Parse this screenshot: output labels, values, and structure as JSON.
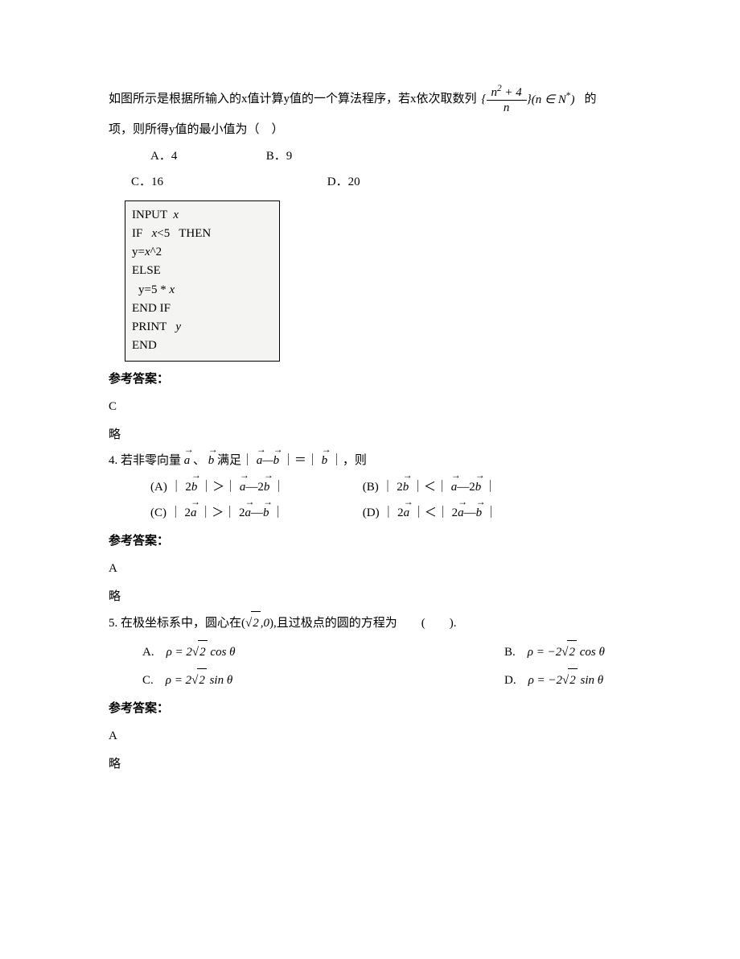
{
  "q3": {
    "intro_pre": "如图所示是根据所输入的x值计算y值的一个算法程序，若x依次取数列",
    "seq": {
      "num": "n² + 4",
      "den": "n",
      "suffix": " (n ∈ N*)"
    },
    "intro_post": "的",
    "line2": "项，则所得y值的最小值为（　）",
    "options": {
      "A": "A．4",
      "B": "B．9",
      "C": "C．16",
      "D": "D．20"
    },
    "answer_label": "参考答案：",
    "answer": "C",
    "note": "略",
    "code": {
      "l1_a": "INPUT  ",
      "l1_b": "x",
      "l2_a": "IF   ",
      "l2_b": "x",
      "l2_c": "<5   THEN",
      "l3_a": "y=",
      "l3_b": "x",
      "l3_c": "^2",
      "l4": "ELSE",
      "l5_a": "y=5 * ",
      "l5_b": "x",
      "l6": "END IF",
      "l7_a": "PRINT   ",
      "l7_b": "y",
      "l8": "END"
    }
  },
  "q4": {
    "intro_pre": "4. 若非零向量",
    "intro_mid": "、",
    "intro_mid2": " 满足｜ ",
    "intro_mid3": " ｜＝｜ ",
    "intro_post": " ｜，则",
    "optA_pre": "(A)  ｜ 2",
    "optA_mid": " ｜＞｜ ",
    "optA_mid2": "—2",
    "optA_post": " ｜",
    "optB_pre": "(B)  ｜ 2",
    "optB_mid": " ｜＜｜ ",
    "optB_mid2": "—2",
    "optB_post": " ｜",
    "optC_pre": "(C)  ｜ 2",
    "optC_mid": " ｜＞｜ 2",
    "optC_mid2": "—",
    "optC_post": " ｜",
    "optD_pre": "(D)  ｜ 2",
    "optD_mid": " ｜＜｜ 2",
    "optD_mid2": "—",
    "optD_post": " ｜",
    "answer_label": "参考答案：",
    "answer": "A",
    "note": "略",
    "vec_a": "a",
    "vec_b": "b"
  },
  "q5": {
    "intro_pre": "5. 在极坐标系中，圆心在(",
    "sqrt2": "2",
    "coord_suffix": ",0",
    "intro_post": "),且过极点的圆的方程为　　(　　).",
    "optA_pre": "A.　",
    "optA_rho": "ρ = 2",
    "optA_sqrt": "2",
    "optA_trig": " cos θ",
    "optB_pre": "B.　",
    "optB_rho": "ρ = −2",
    "optB_sqrt": "2",
    "optB_trig": " cos θ",
    "optC_pre": "C.　",
    "optC_rho": "ρ = 2",
    "optC_sqrt": "2",
    "optC_trig": " sin θ",
    "optD_pre": "D.　",
    "optD_rho": "ρ = −2",
    "optD_sqrt": "2",
    "optD_trig": " sin θ",
    "answer_label": "参考答案：",
    "answer": "A",
    "note": "略"
  }
}
